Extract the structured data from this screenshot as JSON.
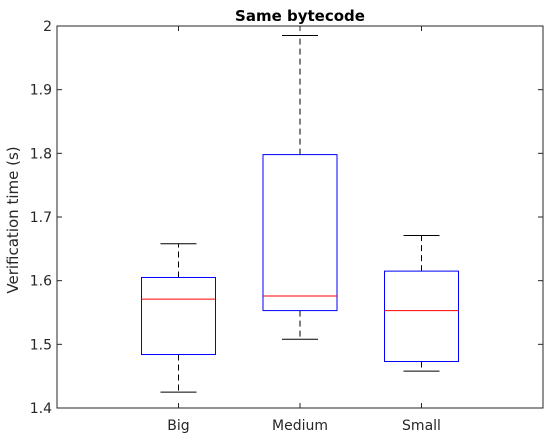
{
  "chart_data": {
    "type": "box",
    "title": "Same bytecode",
    "xlabel": "",
    "ylabel": "Verification time (s)",
    "ylim": [
      1.4,
      2.0
    ],
    "yticks": [
      1.4,
      1.5,
      1.6,
      1.7,
      1.8,
      1.9,
      2.0
    ],
    "ytick_labels": [
      "1.4",
      "1.5",
      "1.6",
      "1.7",
      "1.8",
      "1.9",
      "2"
    ],
    "categories": [
      "Big",
      "Medium",
      "Small"
    ],
    "boxes": [
      {
        "category": "Big",
        "whisker_low": 1.425,
        "q1": 1.484,
        "median": 1.571,
        "q3": 1.605,
        "whisker_high": 1.658
      },
      {
        "category": "Medium",
        "whisker_low": 1.508,
        "q1": 1.553,
        "median": 1.576,
        "q3": 1.798,
        "whisker_high": 1.985
      },
      {
        "category": "Small",
        "whisker_low": 1.458,
        "q1": 1.473,
        "median": 1.553,
        "q3": 1.615,
        "whisker_high": 1.671
      }
    ],
    "grid": false,
    "colors": {
      "box": "#0000ff",
      "median": "#ff0000",
      "whisker": "#000000",
      "axis": "#262626"
    }
  }
}
